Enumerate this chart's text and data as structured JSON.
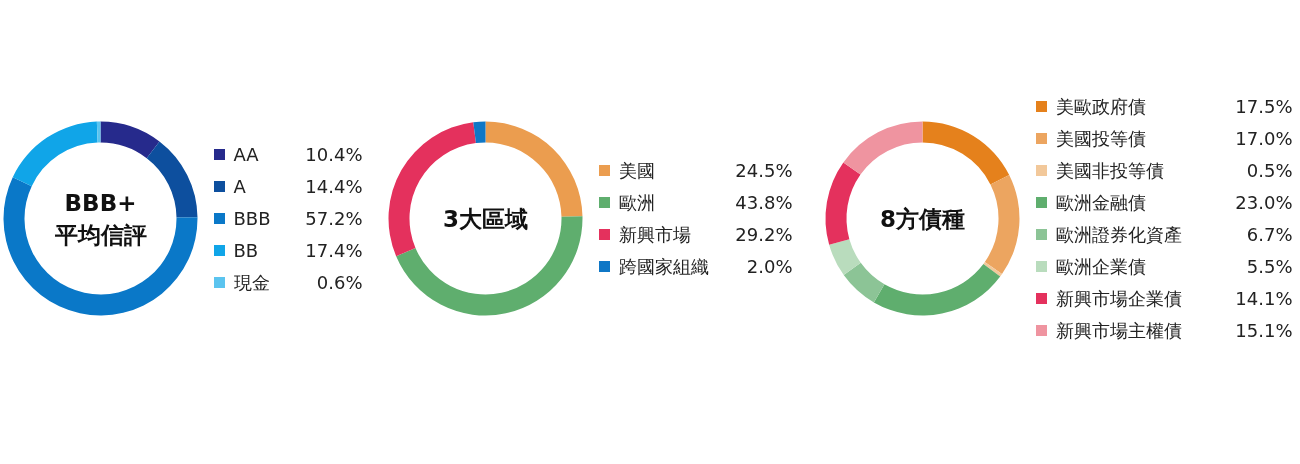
{
  "chart_data": [
    {
      "type": "donut",
      "title": "BBB+\n平均信評",
      "categories": [
        "AA",
        "A",
        "BBB",
        "BB",
        "現金"
      ],
      "values": [
        10.4,
        14.4,
        57.2,
        17.4,
        0.6
      ],
      "colors": [
        "#262a8c",
        "#0d4f9e",
        "#0a78c8",
        "#10a5e8",
        "#5bc4ef"
      ],
      "value_labels": [
        "10.4%",
        "14.4%",
        "57.2%",
        "17.4%",
        "0.6%"
      ],
      "legend": "right"
    },
    {
      "type": "donut",
      "title": "3大區域",
      "categories": [
        "美國",
        "歐洲",
        "新興市場",
        "跨國家組織"
      ],
      "values": [
        24.5,
        43.8,
        29.2,
        2.0
      ],
      "colors": [
        "#eb9d4f",
        "#5fae6e",
        "#e4315d",
        "#0f77c6"
      ],
      "value_labels": [
        "24.5%",
        "43.8%",
        "29.2%",
        "2.0%"
      ],
      "legend": "right"
    },
    {
      "type": "donut",
      "title": "8方債種",
      "categories": [
        "美歐政府債",
        "美國投等債",
        "美國非投等債",
        "歐洲金融債",
        "歐洲證券化資產",
        "歐洲企業債",
        "新興市場企業債",
        "新興市場主權債"
      ],
      "values": [
        17.5,
        17.0,
        0.5,
        23.0,
        6.7,
        5.5,
        14.1,
        15.1
      ],
      "colors": [
        "#e5811c",
        "#eca560",
        "#f2c89a",
        "#5fae6e",
        "#8cc496",
        "#b9dcbd",
        "#e4315d",
        "#ef94a0"
      ],
      "value_labels": [
        "17.5%",
        "17.0%",
        "0.5%",
        "23.0%",
        "6.7%",
        "5.5%",
        "14.1%",
        "15.1%"
      ],
      "legend": "right"
    }
  ]
}
